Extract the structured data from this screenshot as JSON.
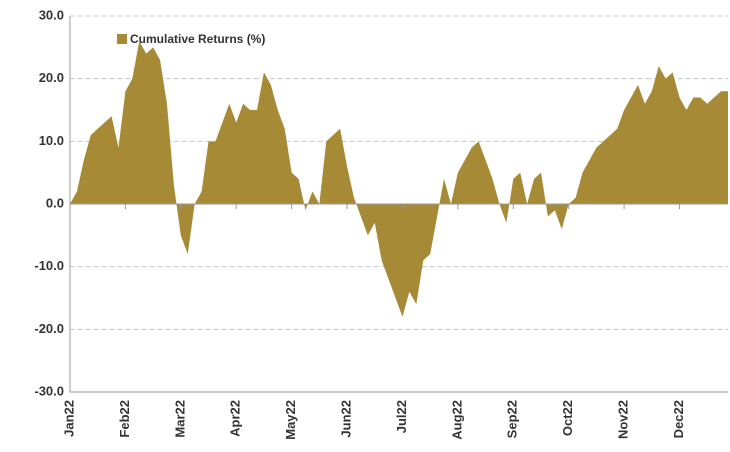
{
  "chart_data": {
    "type": "area",
    "categories": [
      "Jan22",
      null,
      null,
      null,
      null,
      null,
      null,
      null,
      "Feb22",
      null,
      null,
      null,
      null,
      null,
      null,
      null,
      "Mar22",
      null,
      null,
      null,
      null,
      null,
      null,
      null,
      "Apr22",
      null,
      null,
      null,
      null,
      null,
      null,
      null,
      "May22",
      null,
      null,
      null,
      null,
      null,
      null,
      null,
      "Jun22",
      null,
      null,
      null,
      null,
      null,
      null,
      null,
      "Jul22",
      null,
      null,
      null,
      null,
      null,
      null,
      null,
      "Aug22",
      null,
      null,
      null,
      null,
      null,
      null,
      null,
      "Sep22",
      null,
      null,
      null,
      null,
      null,
      null,
      null,
      "Oct22",
      null,
      null,
      null,
      null,
      null,
      null,
      null,
      "Nov22",
      null,
      null,
      null,
      null,
      null,
      null,
      null,
      "Dec22",
      null,
      null,
      null,
      null,
      null,
      null,
      null
    ],
    "series": [
      {
        "name": "Cumulative Returns (%)",
        "color": "#a68a35",
        "values": [
          0,
          2,
          7,
          11,
          12,
          13,
          14,
          9,
          18,
          20,
          26,
          24,
          25,
          23,
          16,
          3,
          -5,
          -8,
          0,
          2,
          10,
          10,
          13,
          16,
          13,
          16,
          15,
          15,
          21,
          19,
          15,
          12,
          5,
          4,
          -1,
          2,
          0,
          10,
          11,
          12,
          6,
          1,
          -2,
          -5,
          -3,
          -9,
          -12,
          -15,
          -18,
          -14,
          -16,
          -9,
          -8,
          -2,
          4,
          0,
          5,
          7,
          9,
          10,
          7,
          4,
          0,
          -3,
          4,
          5,
          0,
          4,
          5,
          -2,
          -1,
          -4,
          0,
          1,
          5,
          7,
          9,
          10,
          11,
          12,
          15,
          17,
          19,
          16,
          18,
          22,
          20,
          21,
          17,
          15,
          17,
          17,
          16,
          17,
          18,
          18
        ]
      }
    ],
    "ylim": [
      -30,
      30
    ],
    "yticks": [
      {
        "value": -30,
        "label": "-30.0"
      },
      {
        "value": -20,
        "label": "-20.0"
      },
      {
        "value": -10,
        "label": "-10.0"
      },
      {
        "value": 0,
        "label": "0.0"
      },
      {
        "value": 10,
        "label": "10.0"
      },
      {
        "value": 20,
        "label": "20.0"
      },
      {
        "value": 30,
        "label": "30.0"
      }
    ],
    "grid": true,
    "legend": "top-left"
  }
}
